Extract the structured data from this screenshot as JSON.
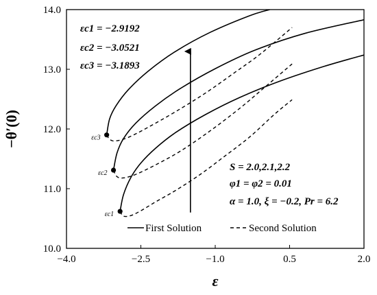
{
  "chart_data": {
    "type": "line",
    "xlabel": "ε",
    "ylabel": "−θ′(0)",
    "xlim": [
      -4.0,
      2.0
    ],
    "ylim": [
      10.0,
      14.0
    ],
    "xticks": [
      -4.0,
      -2.5,
      -1.0,
      0.5,
      2.0
    ],
    "yticks": [
      10.0,
      11.0,
      12.0,
      13.0,
      14.0
    ],
    "xtick_labels": [
      "−4.0",
      "−2.5",
      "−1.0",
      "0.5",
      "2.0"
    ],
    "ytick_labels": [
      "10.0",
      "11.0",
      "12.0",
      "13.0",
      "14.0"
    ],
    "critical_values": [
      {
        "label": "εc1 = −2.9192",
        "point_label": "εc1",
        "x": -2.9192,
        "y": 10.62
      },
      {
        "label": "εc2 = −3.0521",
        "point_label": "εc2",
        "x": -3.0521,
        "y": 11.31
      },
      {
        "label": "εc3 = −3.1893",
        "point_label": "εc3",
        "x": -3.1893,
        "y": 11.9
      }
    ],
    "parameters": [
      "S = 2.0,2.1,2.2",
      "φ1 = φ2 = 0.01",
      "α = 1.0, ξ = −0.2, Pr = 6.2"
    ],
    "legend": {
      "placement": "bottom-center",
      "entries": [
        {
          "label": "First Solution",
          "style": "solid"
        },
        {
          "label": "Second Solution",
          "style": "dashed"
        }
      ]
    },
    "arrow": {
      "from": [
        -1.5,
        10.6
      ],
      "to": [
        -1.5,
        13.3
      ]
    },
    "series": [
      {
        "curve": "S=2.0",
        "branch": "first",
        "style": "solid",
        "x": [
          -2.9192,
          -2.85,
          -2.7,
          -2.5,
          -2.2,
          -1.8,
          -1.2,
          -0.5,
          0.3,
          1.2,
          2.0
        ],
        "y": [
          10.62,
          10.9,
          11.19,
          11.43,
          11.68,
          11.94,
          12.24,
          12.53,
          12.8,
          13.05,
          13.24
        ]
      },
      {
        "curve": "S=2.0",
        "branch": "second",
        "style": "dashed",
        "x": [
          -2.9192,
          -2.85,
          -2.7,
          -2.5,
          -2.2,
          -1.8,
          -1.3,
          -0.8,
          -0.3,
          0.2,
          0.55
        ],
        "y": [
          10.62,
          10.54,
          10.55,
          10.63,
          10.78,
          10.97,
          11.24,
          11.55,
          11.87,
          12.25,
          12.49
        ]
      },
      {
        "curve": "S=2.1",
        "branch": "first",
        "style": "solid",
        "x": [
          -3.0521,
          -2.98,
          -2.85,
          -2.6,
          -2.2,
          -1.7,
          -1.0,
          -0.2,
          0.8,
          2.0
        ],
        "y": [
          11.31,
          11.6,
          11.84,
          12.1,
          12.39,
          12.68,
          13.01,
          13.32,
          13.6,
          13.83
        ]
      },
      {
        "curve": "S=2.1",
        "branch": "second",
        "style": "dashed",
        "x": [
          -3.0521,
          -2.98,
          -2.85,
          -2.6,
          -2.2,
          -1.7,
          -1.1,
          -0.5,
          0.0,
          0.55
        ],
        "y": [
          11.31,
          11.2,
          11.18,
          11.24,
          11.4,
          11.63,
          11.97,
          12.35,
          12.7,
          13.09
        ]
      },
      {
        "curve": "S=2.2",
        "branch": "first",
        "style": "solid",
        "x": [
          -3.1893,
          -3.13,
          -3.0,
          -2.75,
          -2.35,
          -1.8,
          -1.1,
          -0.3,
          0.1
        ],
        "y": [
          11.9,
          12.17,
          12.39,
          12.66,
          12.97,
          13.3,
          13.62,
          13.9,
          14.0
        ]
      },
      {
        "curve": "S=2.2",
        "branch": "second",
        "style": "dashed",
        "x": [
          -3.1893,
          -3.12,
          -3.0,
          -2.75,
          -2.35,
          -1.8,
          -1.2,
          -0.6,
          -0.1,
          0.55
        ],
        "y": [
          11.9,
          11.82,
          11.8,
          11.86,
          12.03,
          12.29,
          12.6,
          12.95,
          13.25,
          13.7
        ]
      }
    ]
  }
}
